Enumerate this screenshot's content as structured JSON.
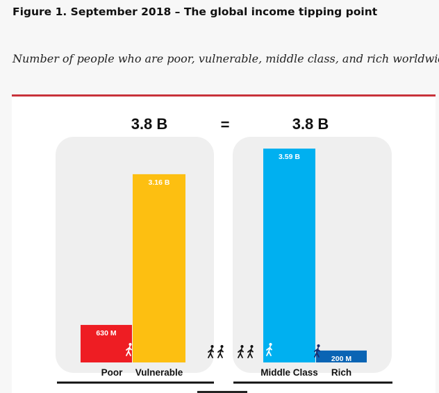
{
  "figure": {
    "title": "Figure 1. September 2018 – The global income tipping point",
    "subtitle": "Number of people who are poor, vulnerable, middle class, and rich worldwide"
  },
  "chart_data": {
    "type": "bar",
    "title": "Figure 1. September 2018 – The global income tipping point",
    "subtitle": "Number of people who are poor, vulnerable, middle class, and rich worldwide",
    "unit": "billions of people",
    "groups": [
      {
        "total_label": "3.8 B",
        "bars": [
          {
            "category": "Poor",
            "value": 0.63,
            "value_label": "630 M",
            "color": "#ee1d23"
          },
          {
            "category": "Vulnerable",
            "value": 3.16,
            "value_label": "3.16 B",
            "color": "#fdbf11"
          }
        ]
      },
      {
        "total_label": "3.8 B",
        "bars": [
          {
            "category": "Middle Class",
            "value": 3.59,
            "value_label": "3.59 B",
            "color": "#00b0f0"
          },
          {
            "category": "Rich",
            "value": 0.2,
            "value_label": "200 M",
            "color": "#0a64b4"
          }
        ]
      }
    ],
    "equals_label": "=",
    "ylim": [
      0,
      3.59
    ],
    "grid": false,
    "legend": "none",
    "icons": [
      "walking-person-icon",
      "walking-person-icon",
      "walking-person-icon",
      "walking-person-icon",
      "walking-person-icon",
      "walking-person-icon",
      "walking-person-icon"
    ]
  }
}
